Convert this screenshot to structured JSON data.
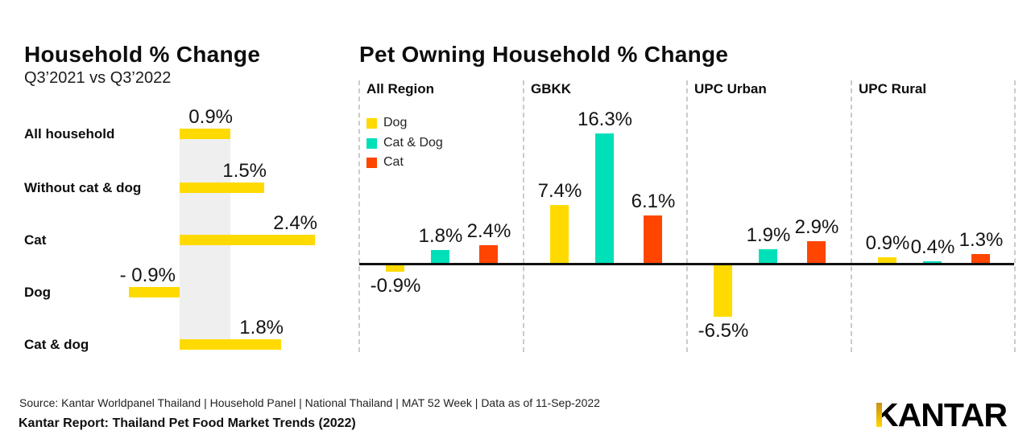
{
  "footer": {
    "source": "Source: Kantar Worldpanel Thailand | Household Panel | National Thailand | MAT 52 Week | Data as of 11-Sep-2022",
    "report": "Kantar Report: Thailand Pet Food Market Trends (2022)"
  },
  "logo": {
    "text": "KANTAR",
    "accent_color": "#e8b400"
  },
  "colors": {
    "dog": "#FFDA00",
    "cat_and_dog": "#00E0B8",
    "cat": "#FF4500",
    "reference_band": "#EFEFEF",
    "axis_line": "#111111",
    "separator": "#CBCBCB"
  },
  "chart_data": [
    {
      "type": "bar",
      "orientation": "horizontal",
      "title": "Household % Change",
      "subtitle": "Q3’2021 vs Q3’2022",
      "unit": "%",
      "categories": [
        "All household",
        "Without cat & dog",
        "Cat",
        "Dog",
        "Cat & dog"
      ],
      "values": [
        0.9,
        1.5,
        2.4,
        -0.9,
        1.8
      ],
      "value_labels": [
        "0.9%",
        "1.5%",
        "2.4%",
        "- 0.9%",
        "1.8%"
      ],
      "bar_color": "#FFDA00",
      "reference_band": {
        "value": 0.9,
        "color": "#EFEFEF"
      },
      "grid": false,
      "xlim": [
        -1,
        2.4
      ]
    },
    {
      "type": "bar",
      "orientation": "vertical",
      "title": "Pet Owning Household % Change",
      "unit": "%",
      "groups": [
        "All Region",
        "GBKK",
        "UPC Urban",
        "UPC Rural"
      ],
      "series": [
        {
          "name": "Dog",
          "color": "#FFDA00",
          "values": [
            -0.9,
            7.4,
            -6.5,
            0.9
          ],
          "value_labels": [
            "-0.9%",
            "7.4%",
            "-6.5%",
            "0.9%"
          ]
        },
        {
          "name": "Cat & Dog",
          "color": "#00E0B8",
          "values": [
            1.8,
            16.3,
            1.9,
            0.4
          ],
          "value_labels": [
            "1.8%",
            "16.3%",
            "1.9%",
            "0.4%"
          ]
        },
        {
          "name": "Cat",
          "color": "#FF4500",
          "values": [
            2.4,
            6.1,
            2.9,
            1.3
          ],
          "value_labels": [
            "2.4%",
            "6.1%",
            "2.9%",
            "1.3%"
          ]
        }
      ],
      "legend_position": "top-left",
      "baseline": 0,
      "grid": false,
      "ylim": [
        -6.5,
        16.3
      ]
    }
  ]
}
